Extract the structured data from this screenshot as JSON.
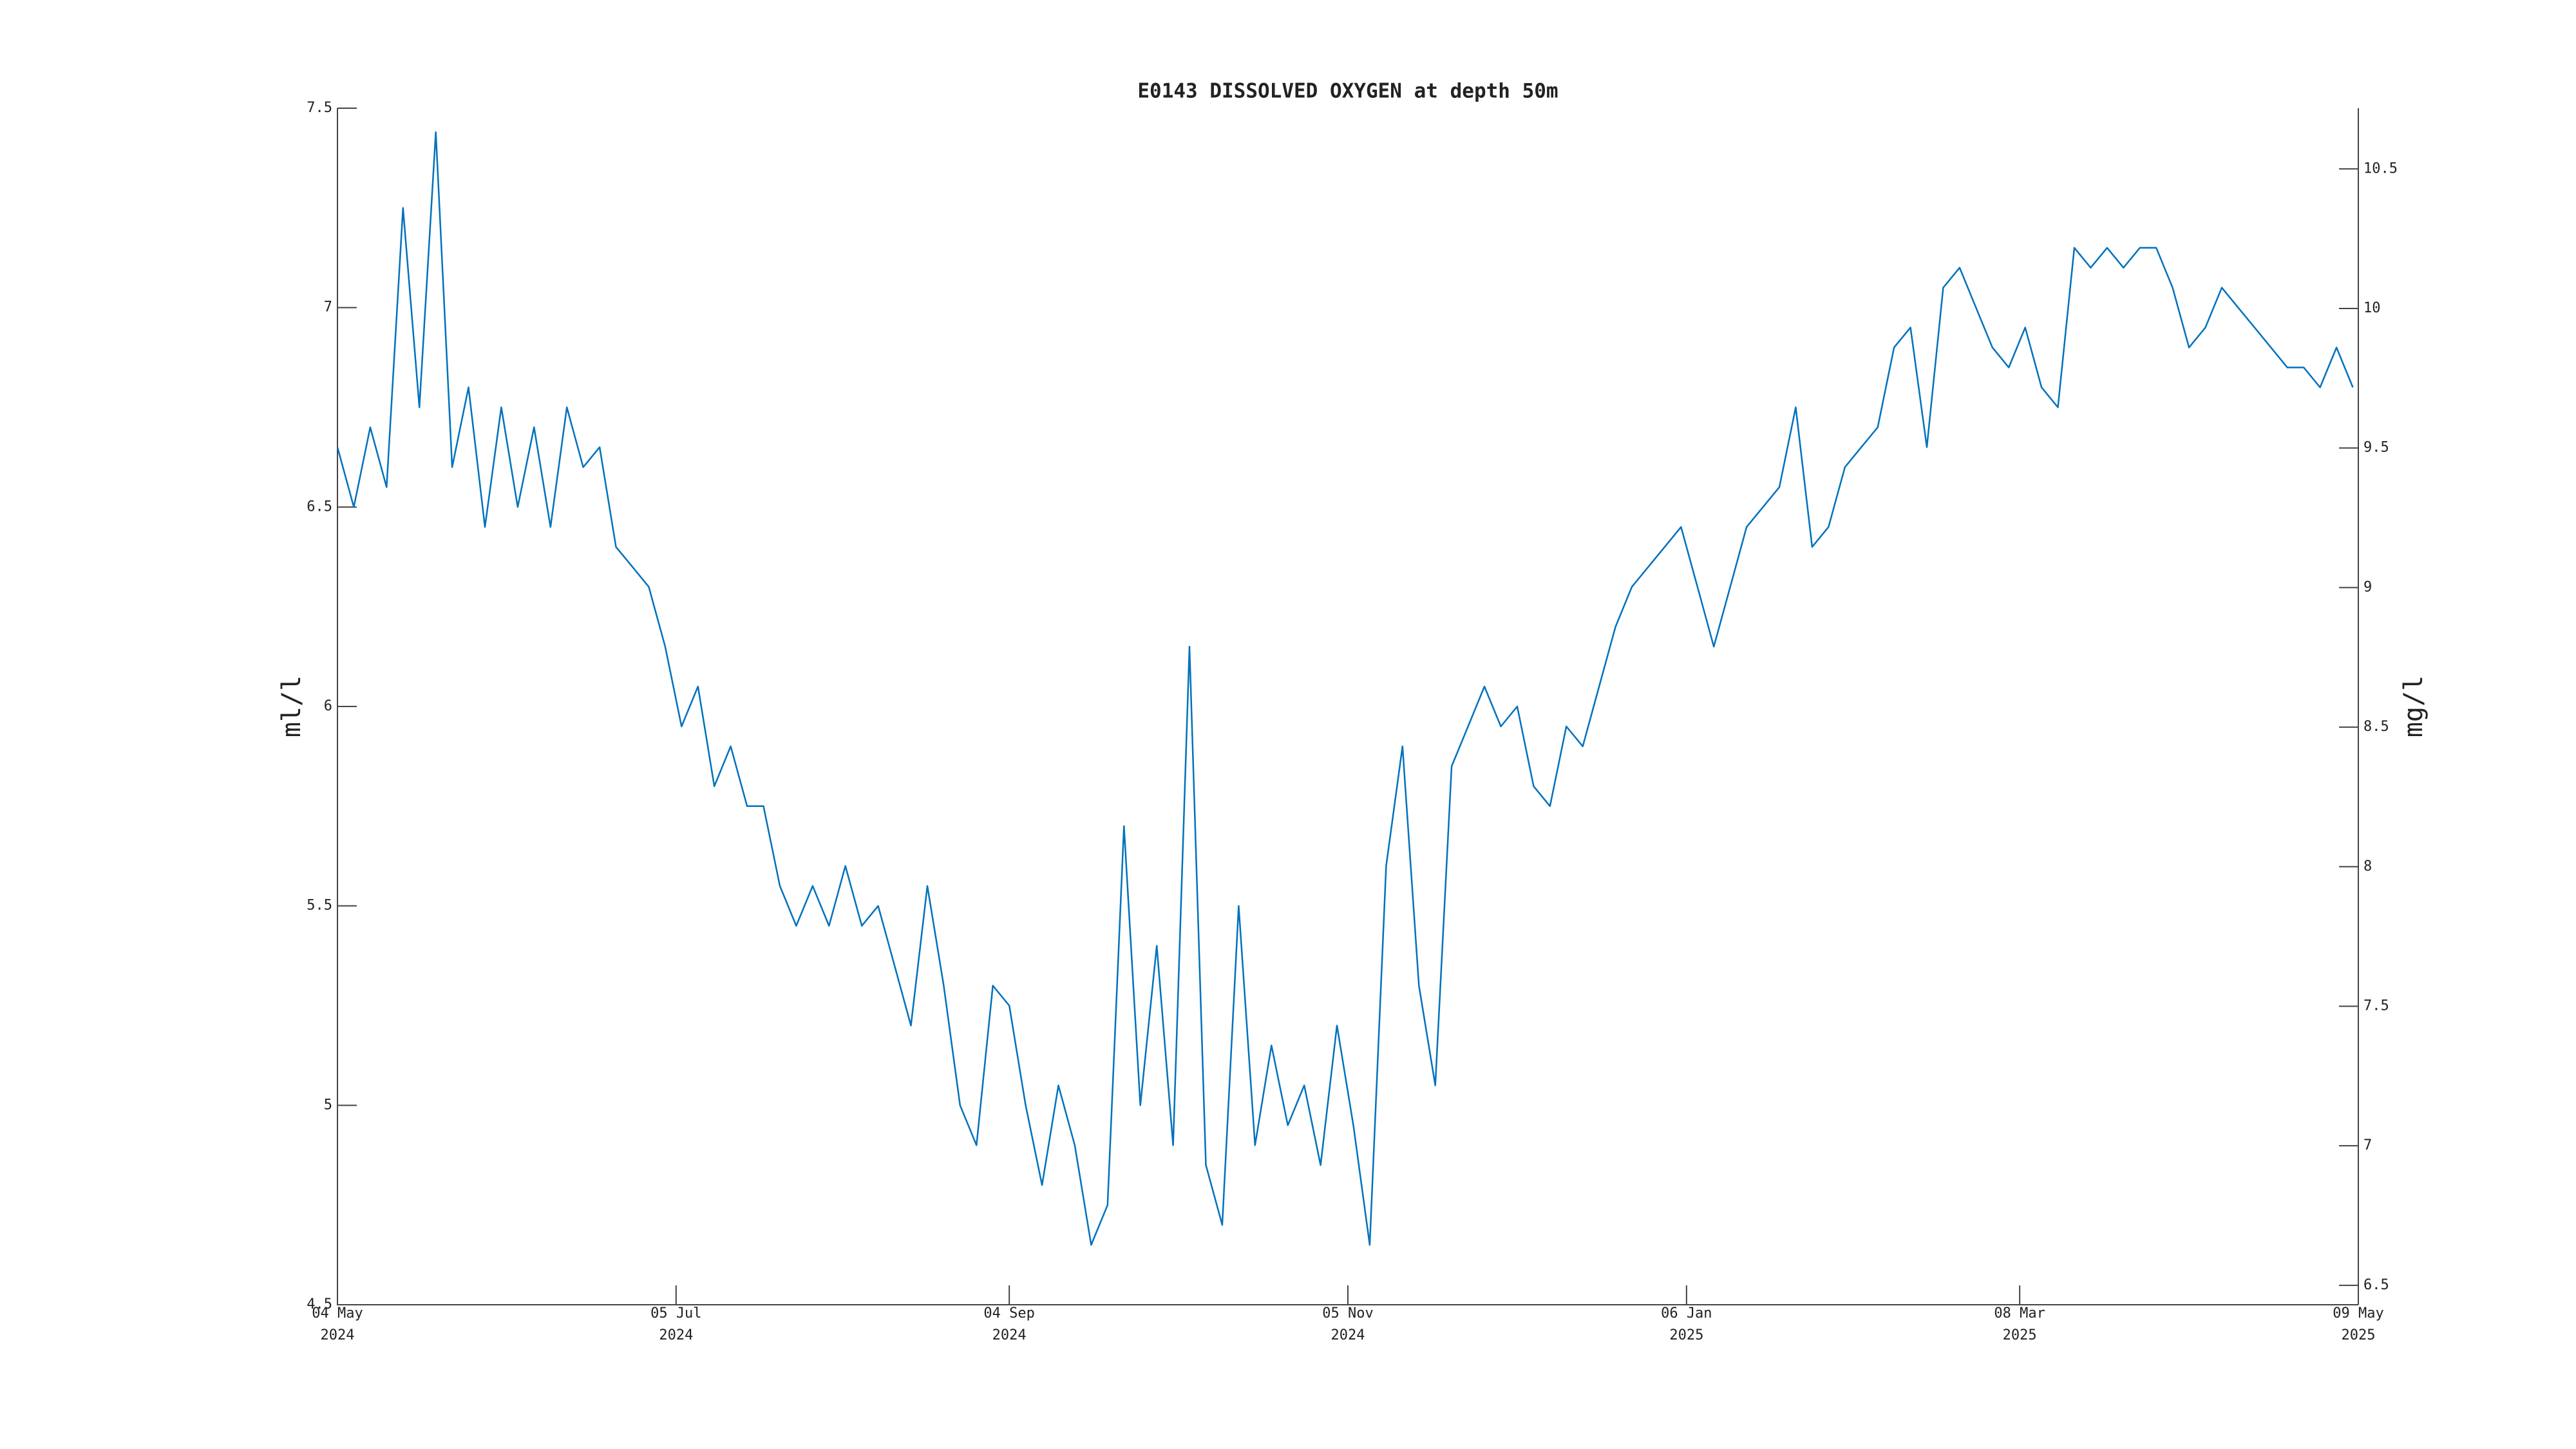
{
  "chart_data": {
    "type": "line",
    "title": "E0143 DISSOLVED OXYGEN at depth 50m",
    "y_label": "ml/l",
    "y2_label": "mg/l",
    "xlim": [
      "2024-05-04",
      "2025-05-09"
    ],
    "xticks": [
      {
        "value": "2024-05-04",
        "label": "04 May 2024"
      },
      {
        "value": "2024-07-05",
        "label": "05 Jul 2024"
      },
      {
        "value": "2024-09-04",
        "label": "04 Sep 2024"
      },
      {
        "value": "2024-11-05",
        "label": "05 Nov 2024"
      },
      {
        "value": "2025-01-06",
        "label": "06 Jan 2025"
      },
      {
        "value": "2025-03-08",
        "label": "08 Mar 2025"
      },
      {
        "value": "2025-05-09",
        "label": "09 May 2025"
      }
    ],
    "ylim": [
      4.5,
      7.5
    ],
    "yticks": [
      4.5,
      5,
      5.5,
      6,
      6.5,
      7,
      7.5
    ],
    "y2lim": [
      6.4305,
      10.7175
    ],
    "y2ticks": [
      6.5,
      7,
      7.5,
      8,
      8.5,
      9,
      9.5,
      10,
      10.5
    ],
    "x": [
      "2024-05-04",
      "2024-05-07",
      "2024-05-10",
      "2024-05-13",
      "2024-05-16",
      "2024-05-19",
      "2024-05-22",
      "2024-05-25",
      "2024-05-28",
      "2024-05-31",
      "2024-06-03",
      "2024-06-06",
      "2024-06-09",
      "2024-06-12",
      "2024-06-15",
      "2024-06-18",
      "2024-06-21",
      "2024-06-24",
      "2024-06-27",
      "2024-06-30",
      "2024-07-03",
      "2024-07-06",
      "2024-07-09",
      "2024-07-12",
      "2024-07-15",
      "2024-07-18",
      "2024-07-21",
      "2024-07-24",
      "2024-07-27",
      "2024-07-30",
      "2024-08-02",
      "2024-08-05",
      "2024-08-08",
      "2024-08-11",
      "2024-08-14",
      "2024-08-17",
      "2024-08-20",
      "2024-08-23",
      "2024-08-26",
      "2024-08-29",
      "2024-09-01",
      "2024-09-04",
      "2024-09-07",
      "2024-09-10",
      "2024-09-13",
      "2024-09-16",
      "2024-09-19",
      "2024-09-22",
      "2024-09-25",
      "2024-09-28",
      "2024-10-01",
      "2024-10-04",
      "2024-10-07",
      "2024-10-10",
      "2024-10-13",
      "2024-10-16",
      "2024-10-19",
      "2024-10-22",
      "2024-10-25",
      "2024-10-28",
      "2024-10-31",
      "2024-11-03",
      "2024-11-06",
      "2024-11-09",
      "2024-11-12",
      "2024-11-15",
      "2024-11-18",
      "2024-11-21",
      "2024-11-24",
      "2024-11-27",
      "2024-11-30",
      "2024-12-03",
      "2024-12-06",
      "2024-12-09",
      "2024-12-12",
      "2024-12-15",
      "2024-12-18",
      "2024-12-21",
      "2024-12-24",
      "2024-12-27",
      "2024-12-30",
      "2025-01-02",
      "2025-01-05",
      "2025-01-08",
      "2025-01-11",
      "2025-01-14",
      "2025-01-17",
      "2025-01-20",
      "2025-01-23",
      "2025-01-26",
      "2025-01-29",
      "2025-02-01",
      "2025-02-04",
      "2025-02-07",
      "2025-02-10",
      "2025-02-13",
      "2025-02-16",
      "2025-02-19",
      "2025-02-22",
      "2025-02-25",
      "2025-02-28",
      "2025-03-03",
      "2025-03-06",
      "2025-03-09",
      "2025-03-12",
      "2025-03-15",
      "2025-03-18",
      "2025-03-21",
      "2025-03-24",
      "2025-03-27",
      "2025-03-30",
      "2025-04-02",
      "2025-04-05",
      "2025-04-08",
      "2025-04-11",
      "2025-04-14",
      "2025-04-17",
      "2025-04-20",
      "2025-04-23",
      "2025-04-26",
      "2025-04-29",
      "2025-05-02",
      "2025-05-05",
      "2025-05-08"
    ],
    "series": [
      {
        "name": "dissolved oxygen",
        "color": "#0072bd",
        "values": [
          6.65,
          6.5,
          6.7,
          6.55,
          7.25,
          6.75,
          7.44,
          6.6,
          6.8,
          6.45,
          6.75,
          6.5,
          6.7,
          6.45,
          6.75,
          6.6,
          6.65,
          6.4,
          6.35,
          6.3,
          6.15,
          5.95,
          6.05,
          5.8,
          5.9,
          5.75,
          5.75,
          5.55,
          5.45,
          5.55,
          5.45,
          5.6,
          5.45,
          5.5,
          5.35,
          5.2,
          5.55,
          5.3,
          5.0,
          4.9,
          5.3,
          5.25,
          5.0,
          4.8,
          5.05,
          4.9,
          4.65,
          4.75,
          5.7,
          5.0,
          5.4,
          4.9,
          6.15,
          4.85,
          4.7,
          5.5,
          4.9,
          5.15,
          4.95,
          5.05,
          4.85,
          5.2,
          4.95,
          4.65,
          5.6,
          5.9,
          5.3,
          5.05,
          5.85,
          5.95,
          6.05,
          5.95,
          6.0,
          5.8,
          5.75,
          5.95,
          5.9,
          6.05,
          6.2,
          6.3,
          6.35,
          6.4,
          6.45,
          6.3,
          6.15,
          6.3,
          6.45,
          6.5,
          6.55,
          6.75,
          6.4,
          6.45,
          6.6,
          6.65,
          6.7,
          6.9,
          6.95,
          6.65,
          7.05,
          7.1,
          7.0,
          6.9,
          6.85,
          6.95,
          6.8,
          6.75,
          7.15,
          7.1,
          7.15,
          7.1,
          7.15,
          7.15,
          7.05,
          6.9,
          6.95,
          7.05,
          7.0,
          6.95,
          6.9,
          6.85,
          6.85,
          6.8,
          6.9,
          6.8
        ]
      }
    ]
  }
}
